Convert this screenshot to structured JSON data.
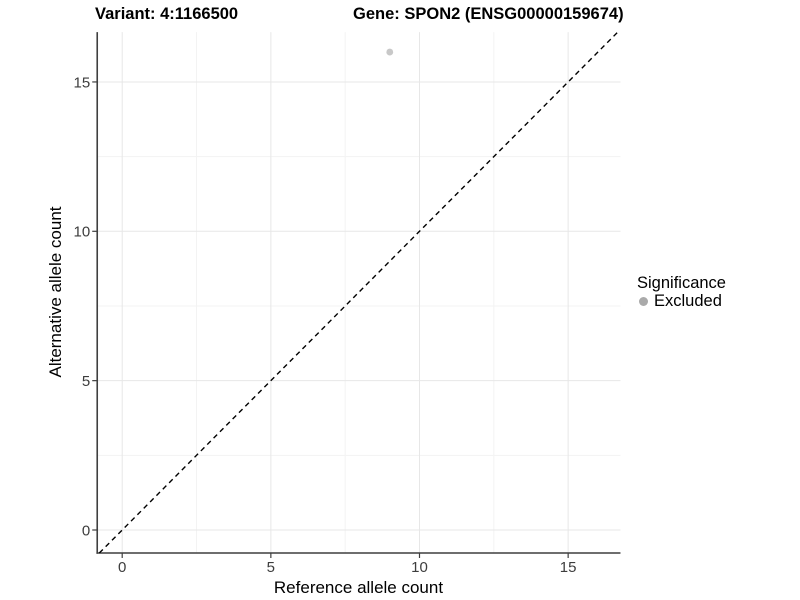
{
  "header": {
    "variant_title": "Variant: 4:1166500",
    "gene_title": "Gene: SPON2 (ENSG00000159674)"
  },
  "chart_data": {
    "type": "scatter",
    "xlabel": "Reference allele count",
    "ylabel": "Alternative allele count",
    "xlim": [
      -0.84,
      16.76
    ],
    "ylim": [
      -0.77,
      16.67
    ],
    "x_ticks": [
      0,
      5,
      10,
      15
    ],
    "y_ticks": [
      0,
      5,
      10,
      15
    ],
    "x_minor_ticks": [
      2.5,
      7.5,
      12.5
    ],
    "y_minor_ticks": [
      2.5,
      7.5,
      12.5
    ],
    "grid": "major+minor",
    "legend_position": "right",
    "series": [
      {
        "name": "Excluded",
        "marker": "circle",
        "color": "#aaaaaa",
        "point_opacity": 0.65,
        "point_radius": 3.4,
        "points": [
          {
            "x": 9,
            "y": 16
          }
        ]
      }
    ],
    "reference_line": {
      "description": "identity line y = x",
      "slope": 1,
      "intercept": 0,
      "linetype": "dashed",
      "color": "#000000"
    }
  },
  "legend": {
    "title": "Significance",
    "entries": [
      {
        "label": "Excluded",
        "color": "#aaaaaa"
      }
    ]
  },
  "colors": {
    "background": "#ffffff",
    "grid_major": "#e7e7e7",
    "grid_minor": "#f3f3f3",
    "axis_line": "#3f3f3f",
    "tick_mark": "#3f3f3f",
    "tick_label": "#3d3d3d",
    "title": "#000000"
  }
}
